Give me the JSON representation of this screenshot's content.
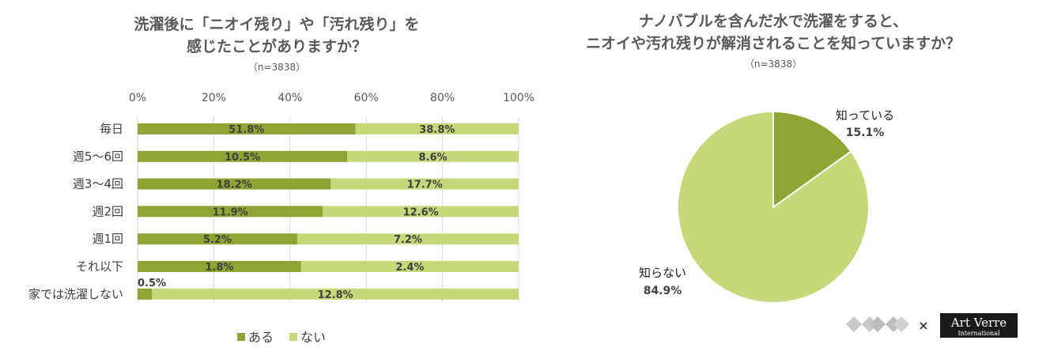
{
  "colors": {
    "aru": "#8fa533",
    "nai": "#c6d97a",
    "grid": "#d9d9d9"
  },
  "logo": {
    "cross": "×",
    "brand": "Art Verre",
    "sub": "International"
  },
  "chart_data": [
    {
      "type": "bar",
      "stacked": true,
      "orientation": "horizontal",
      "title_line1": "洗濯後に「ニオイ残り」や「汚れ残り」を",
      "title_line2": "感じたことがありますか？",
      "subtitle": "（n=3838）",
      "xlim": [
        0,
        100
      ],
      "ticks": [
        "0%",
        "20%",
        "40%",
        "60%",
        "80%",
        "100%"
      ],
      "categories": [
        "毎日",
        "週5～6回",
        "週3～4回",
        "週2回",
        "週1回",
        "それ以下",
        "家では洗濯しない"
      ],
      "series": [
        {
          "name": "ある",
          "values": [
            57.2,
            55.0,
            50.7,
            48.6,
            41.9,
            42.9,
            3.8
          ],
          "labels": [
            "51.8%",
            "10.5%",
            "18.2%",
            "11.9%",
            "5.2%",
            "1.8%",
            "0.5%"
          ]
        },
        {
          "name": "ない",
          "values": [
            42.8,
            45.0,
            49.3,
            51.4,
            58.1,
            57.1,
            96.2
          ],
          "labels": [
            "38.8%",
            "8.6%",
            "17.7%",
            "12.6%",
            "7.2%",
            "2.4%",
            "12.8%"
          ]
        }
      ],
      "legend_position": "bottom"
    },
    {
      "type": "pie",
      "title_line1": "ナノバブルを含んだ水で洗濯をすると、",
      "title_line2": "ニオイや汚れ残りが解消されることを知っていますか？",
      "subtitle": "（n=3838）",
      "slices": [
        {
          "label": "知っている",
          "value": 15.1,
          "value_label": "15.1%"
        },
        {
          "label": "知らない",
          "value": 84.9,
          "value_label": "84.9%"
        }
      ]
    }
  ]
}
